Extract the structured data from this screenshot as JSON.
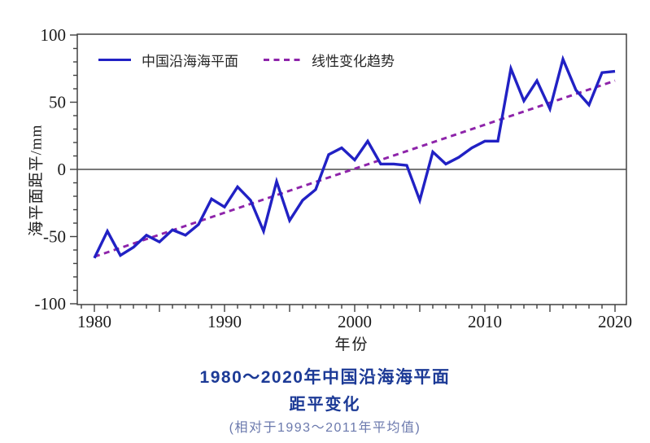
{
  "figure": {
    "caption_line1": "1980～2020年中国沿海海平面",
    "caption_line2": "距平变化",
    "caption_note": "(相对于1993～2011年平均值)"
  },
  "colors": {
    "series_line": "#2121c4",
    "trend_line": "#8e24aa",
    "axis": "#404040",
    "zero_line": "#4d4d4d",
    "tick_label": "#1a1a1a",
    "caption_title": "#1c3a96",
    "caption_note": "#6b79ad"
  },
  "chart_data": {
    "type": "line",
    "title": "1980～2020年中国沿海海平面距平变化（相对于1993～2011年平均值）",
    "xlabel": "年份",
    "ylabel": "海平面距平/mm",
    "xlim": [
      1979,
      2021
    ],
    "ylim": [
      -100,
      100
    ],
    "x_major_tick_labels": [
      1980,
      1990,
      2000,
      2010,
      2020
    ],
    "x_minor_tick_step_years": 1,
    "x_medium_tick_step_years": 5,
    "y_major_ticks": [
      -100,
      -50,
      0,
      50,
      100
    ],
    "y_minor_tick_step": 10,
    "grid": false,
    "zero_line": true,
    "legend_position": "top-left-inside",
    "x": [
      1980,
      1981,
      1982,
      1983,
      1984,
      1985,
      1986,
      1987,
      1988,
      1989,
      1990,
      1991,
      1992,
      1993,
      1994,
      1995,
      1996,
      1997,
      1998,
      1999,
      2000,
      2001,
      2002,
      2003,
      2004,
      2005,
      2006,
      2007,
      2008,
      2009,
      2010,
      2011,
      2012,
      2013,
      2014,
      2015,
      2016,
      2017,
      2018,
      2019,
      2020
    ],
    "series": [
      {
        "name": "中国沿海海平面",
        "style": "solid",
        "color": "#2121c4",
        "values": [
          -66,
          -46,
          -64,
          -58,
          -49,
          -54,
          -45,
          -49,
          -41,
          -22,
          -28,
          -13,
          -23,
          -46,
          -9,
          -38,
          -23,
          -15,
          11,
          16,
          7,
          21,
          4,
          4,
          3,
          -23,
          13,
          4,
          9,
          16,
          21,
          21,
          75,
          51,
          66,
          45,
          82,
          59,
          48,
          72,
          73
        ]
      },
      {
        "name": "线性变化趋势",
        "style": "dashed",
        "color": "#8e24aa",
        "trend_start": {
          "year": 1980,
          "value": -65
        },
        "trend_end": {
          "year": 2020,
          "value": 66
        }
      }
    ]
  }
}
